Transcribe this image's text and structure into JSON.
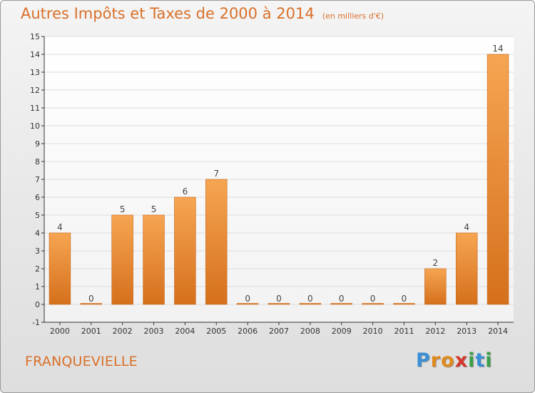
{
  "title": "Autres Impôts et Taxes de 2000 à 2014",
  "subtitle": "(en milliers d'€)",
  "city": "FRANQUEVIELLE",
  "logo": {
    "letters": [
      "P",
      "r",
      "o",
      "x",
      "i",
      "t",
      "i"
    ],
    "colors": [
      "#3a8fd6",
      "#e08a1e",
      "#e08a1e",
      "#d6362a",
      "#3aa04a",
      "#3a8fd6",
      "#3aa04a"
    ]
  },
  "colors": {
    "bar_top": "#f6a552",
    "bar_bottom": "#d5701c",
    "axis": "#333333",
    "grid": "#dddddd"
  },
  "chart_data": {
    "type": "bar",
    "categories": [
      "2000",
      "2001",
      "2002",
      "2003",
      "2004",
      "2005",
      "2006",
      "2007",
      "2008",
      "2009",
      "2010",
      "2011",
      "2012",
      "2013",
      "2014"
    ],
    "values": [
      4,
      0,
      5,
      5,
      6,
      7,
      0,
      0,
      0,
      0,
      0,
      0,
      2,
      4,
      14
    ],
    "data_labels": [
      "4",
      "0",
      "5",
      "5",
      "6",
      "7",
      "0",
      "0",
      "0",
      "0",
      "0",
      "0",
      "2",
      "4",
      "14"
    ],
    "yticks": [
      "-1",
      "0",
      "1",
      "2",
      "3",
      "4",
      "5",
      "6",
      "7",
      "8",
      "9",
      "10",
      "11",
      "12",
      "13",
      "14",
      "15"
    ],
    "ylim": [
      -1,
      15
    ],
    "xlabel": "",
    "ylabel": "",
    "grid": true
  }
}
